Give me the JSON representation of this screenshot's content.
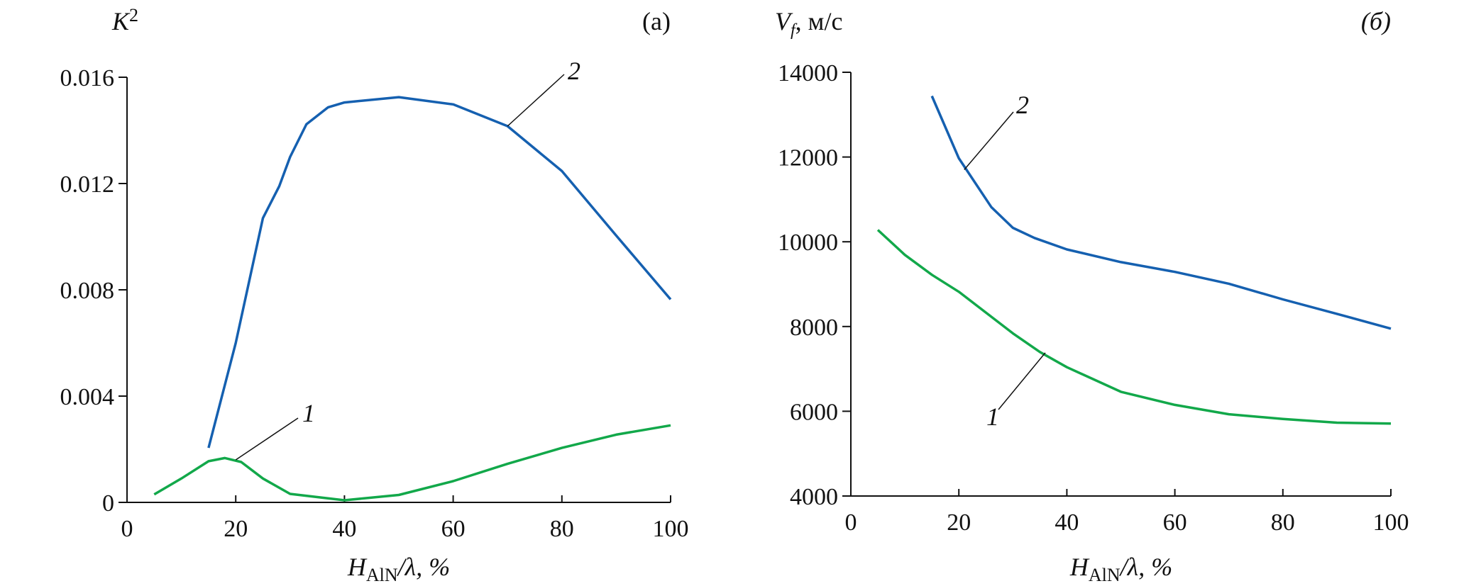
{
  "chart_data": [
    {
      "type": "line",
      "panel_label": "(a)",
      "ylabel": "K",
      "ylabel_superscript": "2",
      "xlabel_main": "H",
      "xlabel_sub": "AlN",
      "xlabel_rest": "/λ, %",
      "xlim": [
        0,
        100
      ],
      "ylim": [
        0,
        0.016
      ],
      "xticks": [
        "0",
        "20",
        "40",
        "60",
        "80",
        "100"
      ],
      "yticks": [
        "0",
        "0.004",
        "0.008",
        "0.012",
        "0.016"
      ],
      "grid": false,
      "series": [
        {
          "name": "1",
          "color": "#12a84a",
          "x": [
            5,
            10,
            15,
            18,
            21,
            25,
            30,
            40,
            50,
            60,
            70,
            80,
            90,
            100
          ],
          "y": [
            0.0003,
            0.0009,
            0.00155,
            0.00167,
            0.00152,
            0.0009,
            0.00032,
            8e-05,
            0.00028,
            0.0008,
            0.00145,
            0.00205,
            0.00255,
            0.0029
          ]
        },
        {
          "name": "2",
          "color": "#1560b0",
          "x": [
            15,
            20,
            25,
            28,
            30,
            33,
            37,
            40,
            50,
            60,
            70,
            80,
            90,
            100
          ],
          "y": [
            0.00205,
            0.006,
            0.0107,
            0.0119,
            0.013,
            0.01423,
            0.01487,
            0.01505,
            0.01525,
            0.01498,
            0.01416,
            0.01247,
            0.01004,
            0.00764
          ]
        }
      ]
    },
    {
      "type": "line",
      "panel_label": "(б)",
      "ylabel": "V",
      "ylabel_subscript": "f",
      "ylabel_unit": ", м/с",
      "xlabel_main": "H",
      "xlabel_sub": "AlN",
      "xlabel_rest": "/λ, %",
      "xlim": [
        0,
        100
      ],
      "ylim": [
        4000,
        14000
      ],
      "xticks": [
        "0",
        "20",
        "40",
        "60",
        "80",
        "100"
      ],
      "yticks": [
        "4000",
        "6000",
        "8000",
        "10000",
        "12000",
        "14000"
      ],
      "grid": false,
      "series": [
        {
          "name": "1",
          "color": "#12a84a",
          "x": [
            5,
            10,
            15,
            20,
            25,
            30,
            35,
            40,
            50,
            60,
            70,
            80,
            90,
            100
          ],
          "y": [
            10280,
            9690,
            9220,
            8820,
            8330,
            7840,
            7400,
            7040,
            6460,
            6150,
            5930,
            5820,
            5730,
            5710
          ]
        },
        {
          "name": "2",
          "color": "#1560b0",
          "x": [
            15,
            20,
            26,
            30,
            34,
            40,
            50,
            60,
            70,
            80,
            90,
            100
          ],
          "y": [
            13440,
            11970,
            10820,
            10330,
            10090,
            9820,
            9520,
            9290,
            9010,
            8640,
            8300,
            7950
          ]
        }
      ]
    }
  ]
}
